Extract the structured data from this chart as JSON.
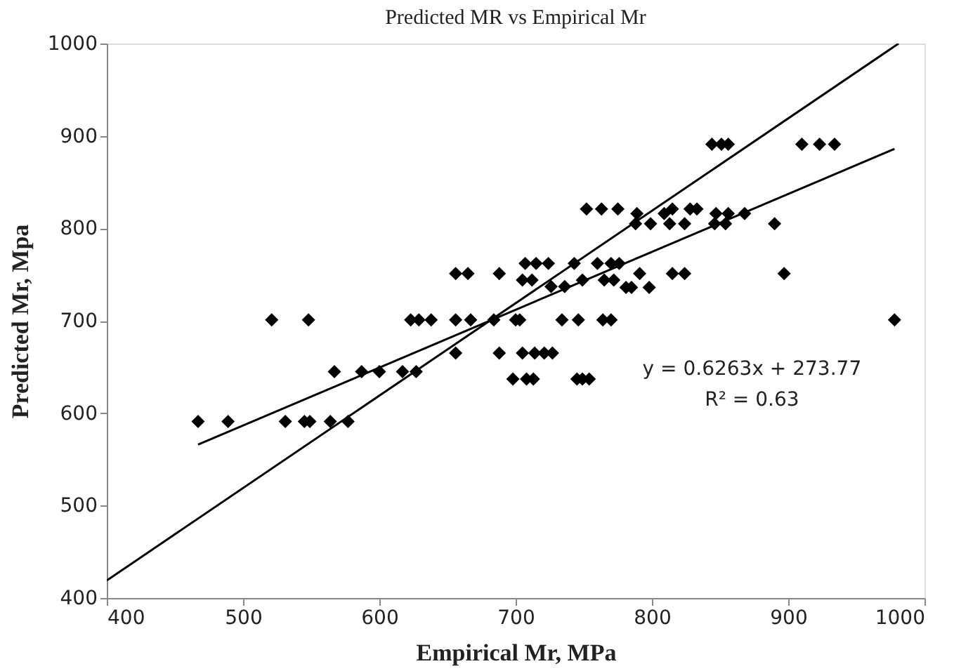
{
  "chart_data": {
    "type": "scatter",
    "title": "Predicted MR vs Empirical Mr",
    "xlabel": "Empirical Mr, MPa",
    "ylabel": "Predicted Mr, Mpa",
    "xlim": [
      400,
      1000
    ],
    "ylim": [
      400,
      1000
    ],
    "xticks": [
      400,
      500,
      600,
      700,
      800,
      900,
      1000
    ],
    "yticks": [
      400,
      500,
      600,
      700,
      800,
      900,
      1000
    ],
    "grid": false,
    "series": [
      {
        "color": "#000000",
        "marker": "diamond",
        "x": [
          467,
          489,
          521,
          548,
          531,
          545,
          549,
          564,
          577,
          567,
          587,
          600,
          617,
          627,
          623,
          629,
          638,
          656,
          665,
          656,
          667,
          656,
          684,
          688,
          688,
          700,
          703,
          698,
          708,
          713,
          705,
          714,
          721,
          727,
          705,
          712,
          707,
          715,
          724,
          726,
          736,
          734,
          746,
          743,
          749,
          745,
          749,
          754,
          752,
          763,
          775,
          760,
          770,
          776,
          765,
          772,
          781,
          785,
          764,
          770,
          791,
          798,
          788,
          789,
          799,
          809,
          813,
          815,
          824,
          828,
          833,
          815,
          824,
          844,
          851,
          856,
          846,
          854,
          847,
          856,
          868,
          890,
          897,
          910,
          923,
          934,
          978
        ],
        "values": [
          591,
          591,
          701,
          701,
          591,
          591,
          591,
          591,
          591,
          645,
          645,
          645,
          645,
          645,
          701,
          701,
          701,
          751,
          751,
          701,
          701,
          665,
          701,
          751,
          665,
          701,
          701,
          637,
          637,
          637,
          665,
          665,
          665,
          665,
          744,
          744,
          762,
          762,
          762,
          737,
          737,
          701,
          701,
          762,
          744,
          637,
          637,
          637,
          821,
          821,
          821,
          762,
          762,
          762,
          744,
          744,
          736,
          736,
          701,
          701,
          751,
          736,
          805,
          816,
          805,
          816,
          805,
          821,
          805,
          821,
          821,
          751,
          751,
          891,
          891,
          891,
          805,
          805,
          816,
          816,
          816,
          805,
          751,
          891,
          891,
          891,
          701
        ]
      },
      {
        "type": "line",
        "color": "#000000",
        "line_style": "solid",
        "x": [
          467,
          978
        ],
        "values": [
          566,
          886
        ]
      },
      {
        "type": "line",
        "color": "#000000",
        "line_style": "solid",
        "x": [
          400,
          981
        ],
        "values": [
          419,
          1000
        ]
      }
    ],
    "annotations": [
      "y = 0.6263x + 273.77",
      "R² = 0.63"
    ]
  }
}
